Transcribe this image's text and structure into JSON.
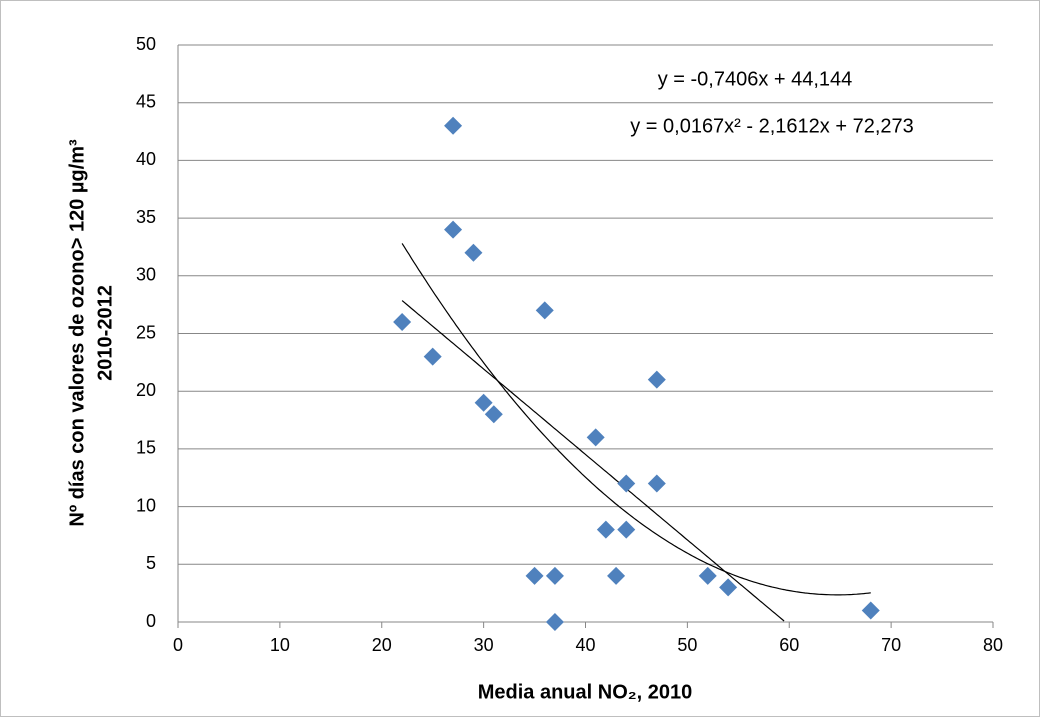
{
  "chart_data": {
    "type": "scatter",
    "xlabel": "Media anual NO₂, 2010",
    "ylabel": [
      "Nº días con valores de ozono> 120 µg/m³",
      "2010-2012"
    ],
    "x": [
      27,
      27,
      29,
      22,
      36,
      25,
      30,
      31,
      47,
      41,
      44,
      47,
      42,
      44,
      35,
      37,
      43,
      52,
      54,
      37,
      68
    ],
    "values": [
      43,
      34,
      32,
      26,
      27,
      23,
      19,
      18,
      21,
      16,
      12,
      12,
      8,
      8,
      4,
      4,
      4,
      4,
      3,
      0,
      1
    ],
    "color": "#4f81bd",
    "xlim": [
      0,
      80
    ],
    "xticks": [
      0,
      10,
      20,
      30,
      40,
      50,
      60,
      70,
      80
    ],
    "ylim": [
      0,
      50
    ],
    "yticks": [
      0,
      5,
      10,
      15,
      20,
      25,
      30,
      35,
      40,
      45,
      50
    ],
    "grid": true,
    "trendlines": [
      {
        "label": "y = -0,7406x + 44,144",
        "coefficients": [
          44.144,
          -0.7406
        ]
      },
      {
        "label": "y = 0,0167x² - 2,1612x + 72,273",
        "coefficients": [
          72.273,
          -2.1612,
          0.0167
        ]
      }
    ]
  }
}
